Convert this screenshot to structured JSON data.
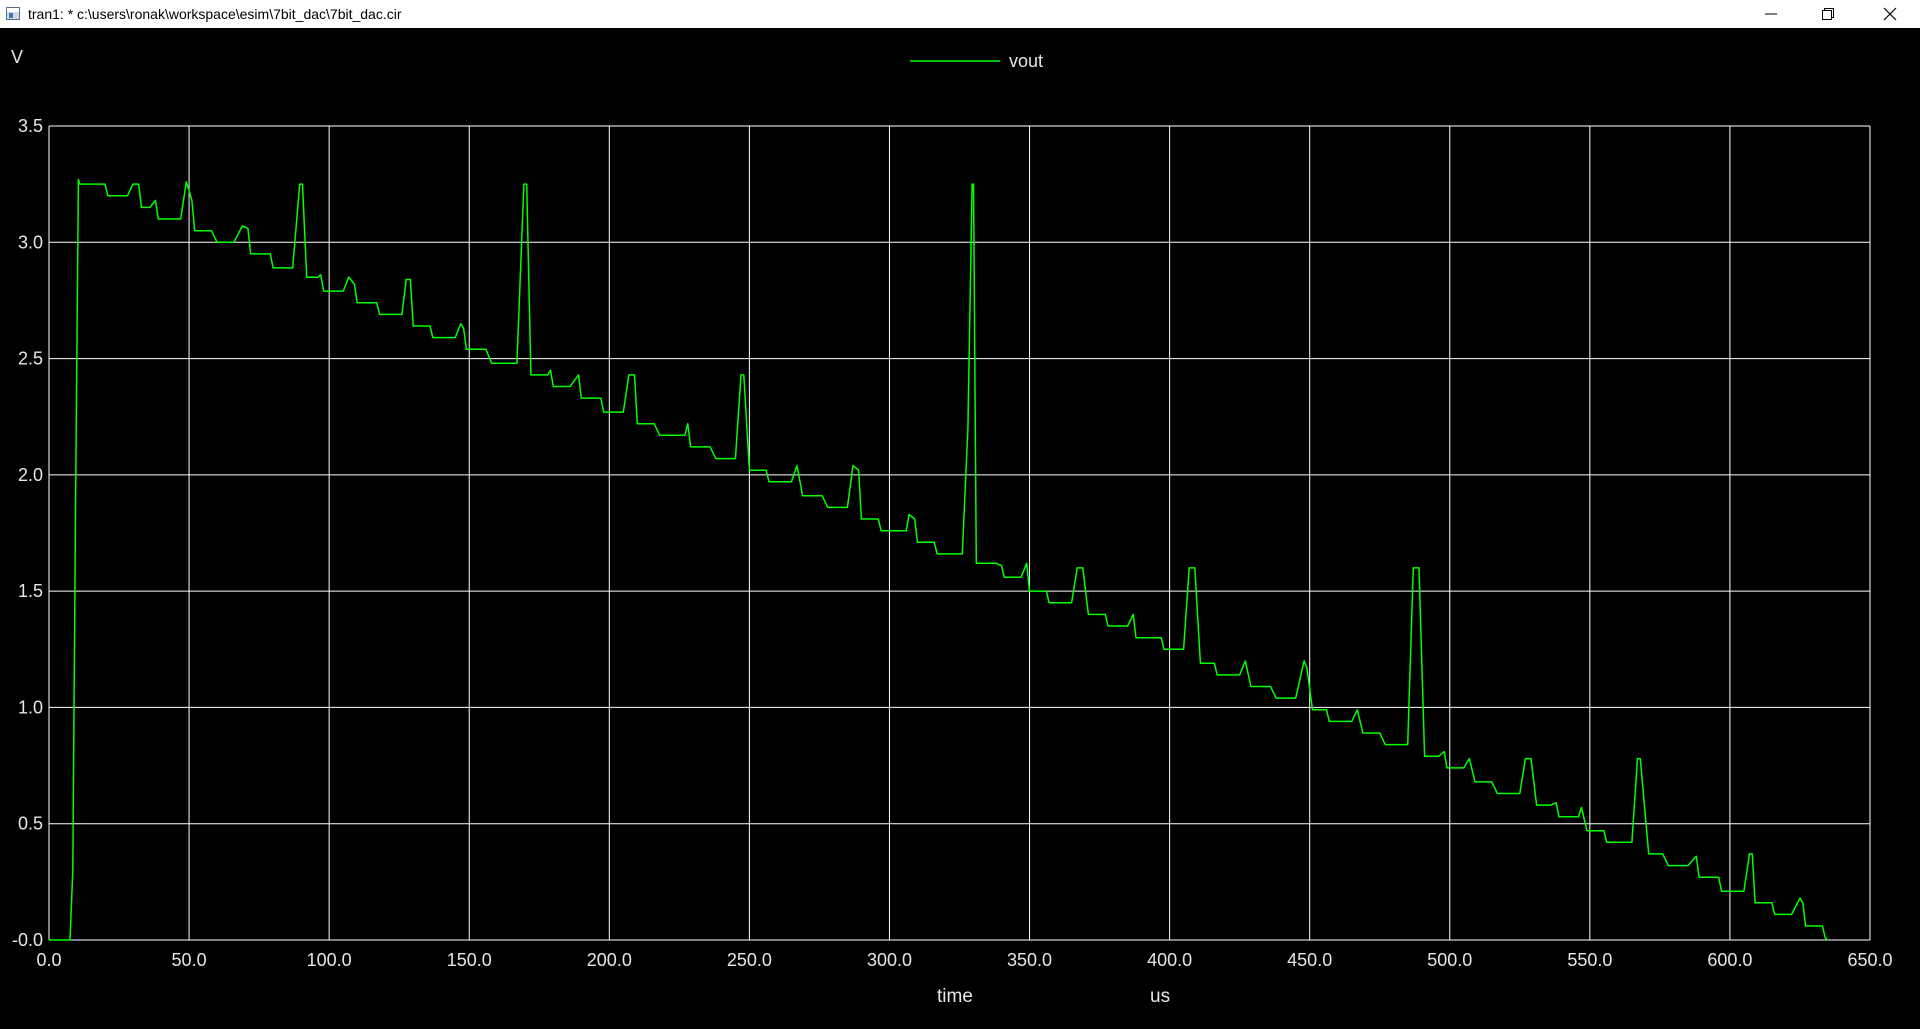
{
  "window": {
    "title": "tran1: * c:\\users\\ronak\\workspace\\esim\\7bit_dac\\7bit_dac.cir",
    "icons": [
      "app-icon",
      "minimize-icon",
      "restore-icon",
      "close-icon"
    ]
  },
  "colors": {
    "background": "#000000",
    "grid": "#ffffff",
    "axis_text": "#ffffff",
    "trace": "#00ff00"
  },
  "chart_data": {
    "type": "line",
    "ylabel": "V",
    "xlabel": "time",
    "xunit": "us",
    "xlim": [
      0,
      650
    ],
    "ylim": [
      0,
      3.5
    ],
    "grid": true,
    "legend_position": "top-center",
    "x_ticks": [
      "0.0",
      "50.0",
      "100.0",
      "150.0",
      "200.0",
      "250.0",
      "300.0",
      "350.0",
      "400.0",
      "450.0",
      "500.0",
      "550.0",
      "600.0",
      "650.0"
    ],
    "y_ticks": [
      "-0.0",
      "0.5",
      "1.0",
      "1.5",
      "2.0",
      "2.5",
      "3.0",
      "3.5"
    ],
    "series": [
      {
        "name": "vout",
        "color": "#00ff00",
        "points": [
          [
            0,
            0
          ],
          [
            7.5,
            0
          ],
          [
            8.5,
            0.3
          ],
          [
            9.5,
            1.9
          ],
          [
            10.5,
            3.27
          ],
          [
            11,
            3.25
          ],
          [
            15,
            3.25
          ],
          [
            20,
            3.25
          ],
          [
            21,
            3.2
          ],
          [
            28,
            3.2
          ],
          [
            30,
            3.25
          ],
          [
            32,
            3.25
          ],
          [
            33,
            3.15
          ],
          [
            36,
            3.15
          ],
          [
            38,
            3.18
          ],
          [
            39,
            3.1
          ],
          [
            47,
            3.1
          ],
          [
            49,
            3.26
          ],
          [
            51,
            3.18
          ],
          [
            52,
            3.05
          ],
          [
            58,
            3.05
          ],
          [
            60,
            3.0
          ],
          [
            66,
            3.0
          ],
          [
            69,
            3.07
          ],
          [
            71,
            3.06
          ],
          [
            72,
            2.95
          ],
          [
            79,
            2.95
          ],
          [
            80,
            2.89
          ],
          [
            87,
            2.89
          ],
          [
            89.5,
            3.25
          ],
          [
            90.5,
            3.25
          ],
          [
            92,
            2.85
          ],
          [
            96,
            2.85
          ],
          [
            97,
            2.86
          ],
          [
            98,
            2.79
          ],
          [
            105,
            2.79
          ],
          [
            107,
            2.85
          ],
          [
            109,
            2.82
          ],
          [
            110,
            2.74
          ],
          [
            117,
            2.74
          ],
          [
            118,
            2.69
          ],
          [
            126,
            2.69
          ],
          [
            127.5,
            2.84
          ],
          [
            129,
            2.84
          ],
          [
            130,
            2.64
          ],
          [
            136,
            2.64
          ],
          [
            137,
            2.59
          ],
          [
            145,
            2.59
          ],
          [
            147,
            2.65
          ],
          [
            148,
            2.63
          ],
          [
            149,
            2.54
          ],
          [
            156,
            2.54
          ],
          [
            158,
            2.48
          ],
          [
            167,
            2.48
          ],
          [
            169.5,
            3.25
          ],
          [
            170.5,
            3.25
          ],
          [
            172,
            2.43
          ],
          [
            178,
            2.43
          ],
          [
            179,
            2.45
          ],
          [
            180,
            2.38
          ],
          [
            186,
            2.38
          ],
          [
            189,
            2.43
          ],
          [
            190,
            2.33
          ],
          [
            197,
            2.33
          ],
          [
            198,
            2.27
          ],
          [
            205,
            2.27
          ],
          [
            207,
            2.43
          ],
          [
            209,
            2.43
          ],
          [
            210,
            2.22
          ],
          [
            216,
            2.22
          ],
          [
            218,
            2.17
          ],
          [
            227,
            2.17
          ],
          [
            228,
            2.22
          ],
          [
            229,
            2.12
          ],
          [
            236,
            2.12
          ],
          [
            238,
            2.07
          ],
          [
            245,
            2.07
          ],
          [
            247,
            2.43
          ],
          [
            248,
            2.43
          ],
          [
            250,
            2.02
          ],
          [
            256,
            2.02
          ],
          [
            257,
            1.97
          ],
          [
            265,
            1.97
          ],
          [
            267,
            2.04
          ],
          [
            269,
            1.91
          ],
          [
            276,
            1.91
          ],
          [
            278,
            1.86
          ],
          [
            285,
            1.86
          ],
          [
            287,
            2.04
          ],
          [
            289,
            2.02
          ],
          [
            290,
            1.81
          ],
          [
            296,
            1.81
          ],
          [
            297,
            1.76
          ],
          [
            306,
            1.76
          ],
          [
            307,
            1.83
          ],
          [
            309,
            1.81
          ],
          [
            310,
            1.71
          ],
          [
            316,
            1.71
          ],
          [
            317,
            1.66
          ],
          [
            326,
            1.66
          ],
          [
            328,
            2.2
          ],
          [
            329.5,
            3.25
          ],
          [
            330,
            3.25
          ],
          [
            331,
            1.62
          ],
          [
            338,
            1.62
          ],
          [
            340,
            1.61
          ],
          [
            341,
            1.56
          ],
          [
            347,
            1.56
          ],
          [
            349,
            1.62
          ],
          [
            350,
            1.5
          ],
          [
            356,
            1.5
          ],
          [
            357,
            1.45
          ],
          [
            365,
            1.45
          ],
          [
            367,
            1.6
          ],
          [
            369,
            1.6
          ],
          [
            371,
            1.4
          ],
          [
            377,
            1.4
          ],
          [
            378,
            1.35
          ],
          [
            385,
            1.35
          ],
          [
            387,
            1.4
          ],
          [
            388,
            1.3
          ],
          [
            397,
            1.3
          ],
          [
            398,
            1.25
          ],
          [
            405,
            1.25
          ],
          [
            407,
            1.6
          ],
          [
            409,
            1.6
          ],
          [
            411,
            1.19
          ],
          [
            416,
            1.19
          ],
          [
            417,
            1.14
          ],
          [
            425,
            1.14
          ],
          [
            427,
            1.2
          ],
          [
            429,
            1.09
          ],
          [
            436,
            1.09
          ],
          [
            438,
            1.04
          ],
          [
            445,
            1.04
          ],
          [
            448,
            1.2
          ],
          [
            449,
            1.17
          ],
          [
            451,
            0.99
          ],
          [
            456,
            0.99
          ],
          [
            457,
            0.94
          ],
          [
            465,
            0.94
          ],
          [
            467,
            0.99
          ],
          [
            469,
            0.89
          ],
          [
            475,
            0.89
          ],
          [
            477,
            0.84
          ],
          [
            485,
            0.84
          ],
          [
            487,
            1.6
          ],
          [
            489,
            1.6
          ],
          [
            491,
            0.79
          ],
          [
            496,
            0.79
          ],
          [
            498,
            0.81
          ],
          [
            499,
            0.74
          ],
          [
            505,
            0.74
          ],
          [
            507,
            0.78
          ],
          [
            509,
            0.68
          ],
          [
            515,
            0.68
          ],
          [
            517,
            0.63
          ],
          [
            525,
            0.63
          ],
          [
            527,
            0.78
          ],
          [
            529,
            0.78
          ],
          [
            531,
            0.58
          ],
          [
            536,
            0.58
          ],
          [
            538,
            0.59
          ],
          [
            539,
            0.53
          ],
          [
            546,
            0.53
          ],
          [
            547,
            0.57
          ],
          [
            549,
            0.47
          ],
          [
            555,
            0.47
          ],
          [
            556,
            0.42
          ],
          [
            565,
            0.42
          ],
          [
            567,
            0.78
          ],
          [
            568,
            0.78
          ],
          [
            571,
            0.37
          ],
          [
            576,
            0.37
          ],
          [
            578,
            0.32
          ],
          [
            585,
            0.32
          ],
          [
            588,
            0.36
          ],
          [
            589,
            0.27
          ],
          [
            596,
            0.27
          ],
          [
            597,
            0.21
          ],
          [
            605,
            0.21
          ],
          [
            607,
            0.37
          ],
          [
            608,
            0.37
          ],
          [
            609,
            0.16
          ],
          [
            615,
            0.16
          ],
          [
            616,
            0.11
          ],
          [
            622,
            0.11
          ],
          [
            625,
            0.18
          ],
          [
            626,
            0.16
          ],
          [
            627,
            0.06
          ],
          [
            633,
            0.06
          ],
          [
            634,
            0.01
          ],
          [
            635,
            0
          ]
        ]
      }
    ]
  }
}
